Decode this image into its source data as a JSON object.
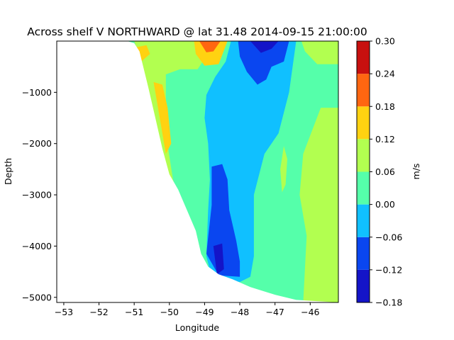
{
  "chart_data": {
    "type": "contourf",
    "title": "Across shelf V NORTHWARD @ lat 31.48 2014-09-15 21:00:00",
    "xlabel": "Longitude",
    "ylabel": "Depth",
    "xlim": [
      -53.2,
      -45.2
    ],
    "ylim": [
      -5100,
      0
    ],
    "xticks": [
      -53,
      -52,
      -51,
      -50,
      -49,
      -48,
      -47,
      -46
    ],
    "yticks": [
      -5000,
      -4000,
      -3000,
      -2000,
      -1000
    ],
    "colorbar": {
      "label": "m/s",
      "levels": [
        -0.18,
        -0.12,
        -0.06,
        0.0,
        0.06,
        0.12,
        0.18,
        0.24,
        0.3
      ],
      "tick_labels": [
        "−0.18",
        "−0.12",
        "−0.06",
        "0.00",
        "0.06",
        "0.12",
        "0.18",
        "0.24",
        "0.30"
      ],
      "colors": [
        "#1414c8",
        "#0a46f0",
        "#10c0ff",
        "#55ffaa",
        "#b2ff50",
        "#ffd211",
        "#ff6611",
        "#c8100f"
      ]
    },
    "bathymetry": [
      [
        -53.2,
        0
      ],
      [
        -51.2,
        0
      ],
      [
        -51.0,
        -40
      ],
      [
        -50.85,
        -200
      ],
      [
        -50.6,
        -900
      ],
      [
        -50.4,
        -1500
      ],
      [
        -50.2,
        -2100
      ],
      [
        -50.0,
        -2600
      ],
      [
        -49.75,
        -2900
      ],
      [
        -49.5,
        -3300
      ],
      [
        -49.25,
        -3700
      ],
      [
        -49.1,
        -4150
      ],
      [
        -48.9,
        -4400
      ],
      [
        -48.6,
        -4550
      ],
      [
        -48.2,
        -4650
      ],
      [
        -47.7,
        -4800
      ],
      [
        -47.0,
        -4950
      ],
      [
        -46.4,
        -5050
      ],
      [
        -45.2,
        -5100
      ]
    ],
    "regions": [
      {
        "bin": 3,
        "points": [
          [
            -53.2,
            0
          ],
          [
            -45.2,
            0
          ],
          [
            -45.2,
            -5100
          ],
          [
            -53.2,
            -5100
          ]
        ]
      },
      {
        "bin": 2,
        "points": [
          [
            -49.0,
            0
          ],
          [
            -48.25,
            0
          ],
          [
            -48.4,
            -400
          ],
          [
            -48.7,
            -700
          ],
          [
            -48.95,
            -1050
          ],
          [
            -49.0,
            -1500
          ],
          [
            -48.9,
            -2000
          ],
          [
            -48.85,
            -2700
          ],
          [
            -48.9,
            -3300
          ],
          [
            -48.95,
            -4200
          ],
          [
            -48.8,
            -4600
          ],
          [
            -48.0,
            -4700
          ],
          [
            -47.7,
            -4600
          ],
          [
            -47.6,
            -4200
          ],
          [
            -47.6,
            -3000
          ],
          [
            -47.3,
            -2200
          ],
          [
            -46.9,
            -1800
          ],
          [
            -46.6,
            -1000
          ],
          [
            -46.4,
            0
          ]
        ]
      },
      {
        "bin": 2,
        "points": [
          [
            -50.55,
            0
          ],
          [
            -50.25,
            0
          ],
          [
            -50.45,
            -150
          ],
          [
            -50.55,
            -50
          ]
        ]
      },
      {
        "bin": 1,
        "points": [
          [
            -48.05,
            0
          ],
          [
            -46.6,
            0
          ],
          [
            -46.75,
            -400
          ],
          [
            -47.1,
            -500
          ],
          [
            -47.25,
            -750
          ],
          [
            -47.5,
            -850
          ],
          [
            -47.8,
            -600
          ],
          [
            -48.0,
            -300
          ]
        ]
      },
      {
        "bin": 1,
        "points": [
          [
            -48.8,
            -2450
          ],
          [
            -48.5,
            -2400
          ],
          [
            -48.35,
            -2700
          ],
          [
            -48.3,
            -3300
          ],
          [
            -48.1,
            -3900
          ],
          [
            -48.0,
            -4300
          ],
          [
            -48.0,
            -4600
          ],
          [
            -48.6,
            -4570
          ],
          [
            -48.95,
            -4150
          ],
          [
            -48.8,
            -3200
          ]
        ]
      },
      {
        "bin": 1,
        "points": [
          [
            -50.3,
            -50
          ],
          [
            -50.0,
            -50
          ],
          [
            -49.95,
            -180
          ],
          [
            -50.3,
            -250
          ]
        ]
      },
      {
        "bin": 0,
        "points": [
          [
            -47.7,
            0
          ],
          [
            -46.9,
            0
          ],
          [
            -47.1,
            -150
          ],
          [
            -47.4,
            -230
          ]
        ]
      },
      {
        "bin": 0,
        "points": [
          [
            -48.75,
            -4000
          ],
          [
            -48.5,
            -3950
          ],
          [
            -48.45,
            -4450
          ],
          [
            -48.65,
            -4550
          ]
        ]
      },
      {
        "bin": 4,
        "points": [
          [
            -46.25,
            0
          ],
          [
            -45.2,
            0
          ],
          [
            -45.2,
            -450
          ],
          [
            -45.8,
            -450
          ],
          [
            -46.15,
            -200
          ]
        ]
      },
      {
        "bin": 4,
        "points": [
          [
            -45.7,
            -1300
          ],
          [
            -45.2,
            -1300
          ],
          [
            -45.2,
            -5100
          ],
          [
            -46.2,
            -5100
          ],
          [
            -46.1,
            -3800
          ],
          [
            -46.3,
            -3000
          ],
          [
            -46.2,
            -2200
          ]
        ]
      },
      {
        "bin": 4,
        "points": [
          [
            -46.75,
            -2050
          ],
          [
            -46.65,
            -2300
          ],
          [
            -46.7,
            -2800
          ],
          [
            -46.8,
            -2950
          ],
          [
            -46.85,
            -2500
          ]
        ]
      },
      {
        "bin": 4,
        "points": [
          [
            -51.0,
            0
          ],
          [
            -49.3,
            0
          ],
          [
            -49.05,
            -400
          ],
          [
            -49.2,
            -550
          ],
          [
            -49.7,
            -550
          ],
          [
            -50.1,
            -650
          ],
          [
            -50.1,
            -1800
          ],
          [
            -49.9,
            -2700
          ],
          [
            -49.75,
            -3000
          ],
          [
            -50.1,
            -2600
          ],
          [
            -50.45,
            -1600
          ],
          [
            -50.75,
            -700
          ],
          [
            -50.9,
            -200
          ]
        ]
      },
      {
        "bin": 5,
        "points": [
          [
            -50.95,
            -120
          ],
          [
            -50.65,
            -80
          ],
          [
            -50.55,
            -250
          ],
          [
            -50.8,
            -400
          ]
        ]
      },
      {
        "bin": 5,
        "points": [
          [
            -50.45,
            -800
          ],
          [
            -50.2,
            -850
          ],
          [
            -50.05,
            -1300
          ],
          [
            -49.95,
            -2000
          ],
          [
            -50.1,
            -2200
          ],
          [
            -50.25,
            -1600
          ]
        ]
      },
      {
        "bin": 5,
        "points": [
          [
            -49.3,
            0
          ],
          [
            -48.35,
            0
          ],
          [
            -48.6,
            -450
          ],
          [
            -49.0,
            -480
          ],
          [
            -49.25,
            -250
          ]
        ]
      },
      {
        "bin": 6,
        "points": [
          [
            -49.15,
            0
          ],
          [
            -48.55,
            0
          ],
          [
            -48.75,
            -200
          ],
          [
            -48.95,
            -220
          ]
        ]
      }
    ]
  }
}
